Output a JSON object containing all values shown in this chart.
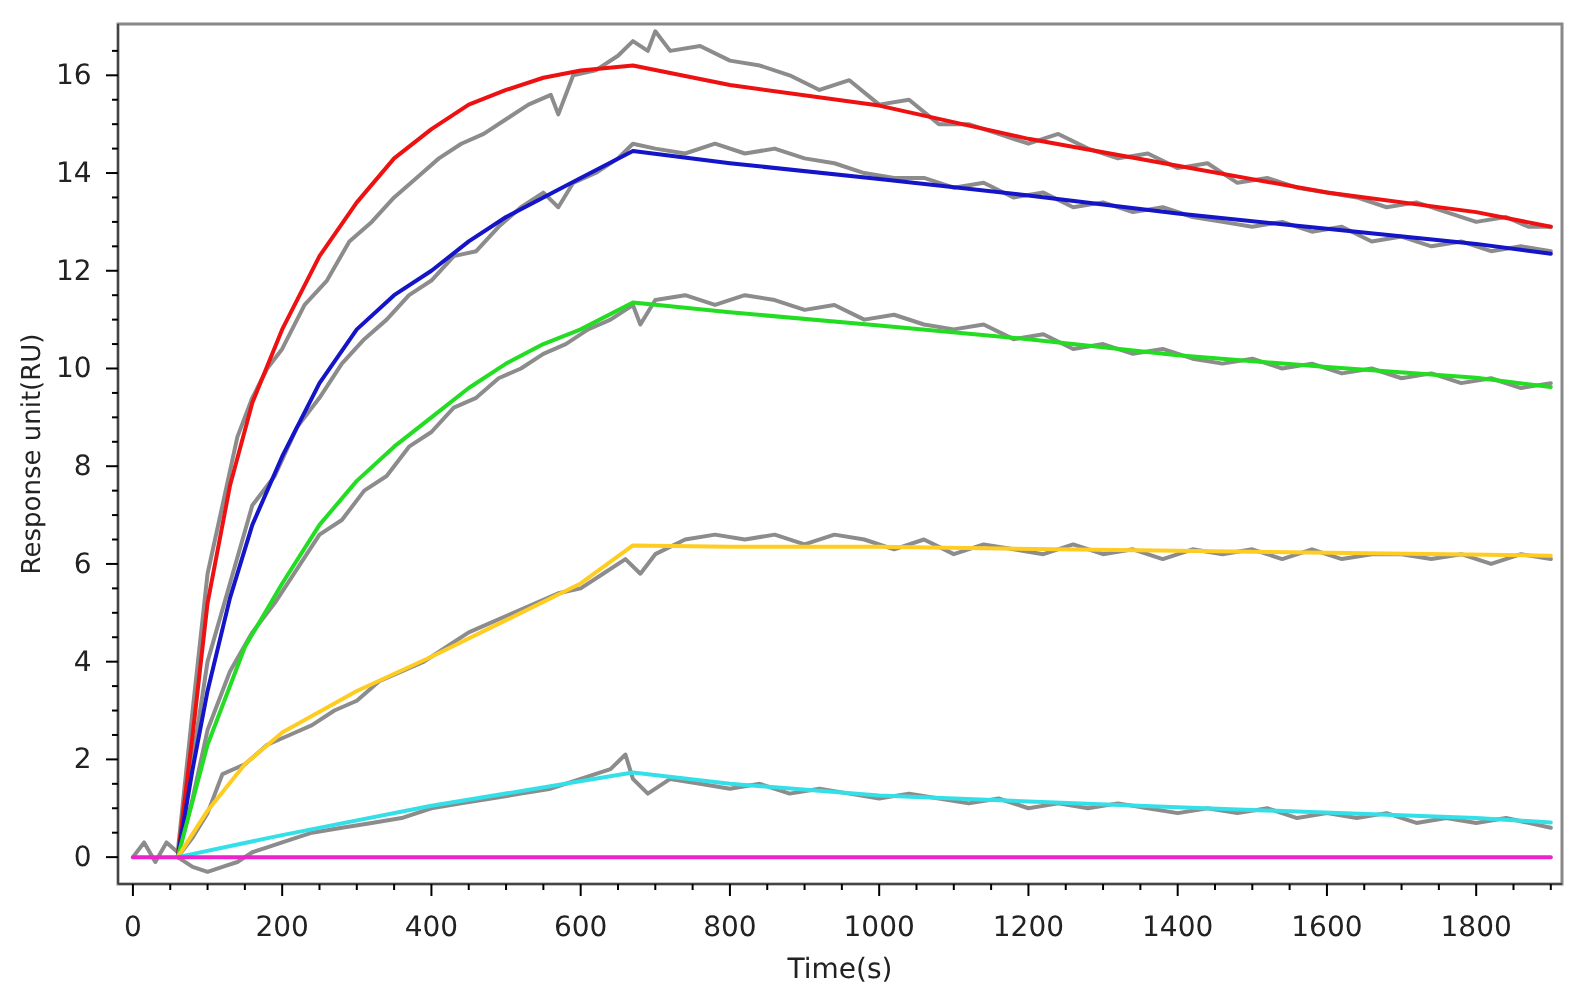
{
  "chart_data": {
    "type": "line",
    "xlabel": "Time(s)",
    "ylabel": "Response unit(RU)",
    "xlim": [
      -20,
      1915
    ],
    "ylim": [
      -0.55,
      17.05
    ],
    "xticks": [
      0,
      {
        "value": 50,
        "label": null
      },
      {
        "value": 100,
        "label": null
      },
      {
        "value": 150,
        "label": null
      },
      200,
      {
        "value": 250,
        "label": null
      },
      {
        "value": 300,
        "label": null
      },
      {
        "value": 350,
        "label": null
      },
      400,
      {
        "value": 450,
        "label": null
      },
      {
        "value": 500,
        "label": null
      },
      {
        "value": 550,
        "label": null
      },
      600,
      {
        "value": 650,
        "label": null
      },
      {
        "value": 700,
        "label": null
      },
      {
        "value": 750,
        "label": null
      },
      800,
      {
        "value": 850,
        "label": null
      },
      {
        "value": 900,
        "label": null
      },
      {
        "value": 950,
        "label": null
      },
      1000,
      {
        "value": 1050,
        "label": null
      },
      {
        "value": 1100,
        "label": null
      },
      {
        "value": 1150,
        "label": null
      },
      1200,
      {
        "value": 1250,
        "label": null
      },
      {
        "value": 1300,
        "label": null
      },
      {
        "value": 1350,
        "label": null
      },
      1400,
      {
        "value": 1450,
        "label": null
      },
      {
        "value": 1500,
        "label": null
      },
      {
        "value": 1550,
        "label": null
      },
      1600,
      {
        "value": 1650,
        "label": null
      },
      {
        "value": 1700,
        "label": null
      },
      {
        "value": 1750,
        "label": null
      },
      1800,
      {
        "value": 1850,
        "label": null
      },
      {
        "value": 1900,
        "label": null
      }
    ],
    "yticks": [
      0,
      {
        "value": 0.5,
        "label": null
      },
      {
        "value": 1,
        "label": null
      },
      {
        "value": 1.5,
        "label": null
      },
      2,
      {
        "value": 2.5,
        "label": null
      },
      {
        "value": 3,
        "label": null
      },
      {
        "value": 3.5,
        "label": null
      },
      4,
      {
        "value": 4.5,
        "label": null
      },
      {
        "value": 5,
        "label": null
      },
      {
        "value": 5.5,
        "label": null
      },
      6,
      {
        "value": 6.5,
        "label": null
      },
      {
        "value": 7,
        "label": null
      },
      {
        "value": 7.5,
        "label": null
      },
      8,
      {
        "value": 8.5,
        "label": null
      },
      {
        "value": 9,
        "label": null
      },
      {
        "value": 9.5,
        "label": null
      },
      10,
      {
        "value": 10.5,
        "label": null
      },
      {
        "value": 11,
        "label": null
      },
      {
        "value": 11.5,
        "label": null
      },
      12,
      {
        "value": 12.5,
        "label": null
      },
      {
        "value": 13,
        "label": null
      },
      {
        "value": 13.5,
        "label": null
      },
      14,
      {
        "value": 14.5,
        "label": null
      },
      {
        "value": 15,
        "label": null
      },
      {
        "value": 15.5,
        "label": null
      },
      16,
      {
        "value": 16.5,
        "label": null
      }
    ],
    "grid": false,
    "marker": "none",
    "line_style": "solid",
    "series": [
      {
        "color": "#8c8c8c",
        "x": [
          0,
          15,
          30,
          45,
          60,
          80,
          100,
          120,
          140,
          160,
          180,
          200,
          230,
          260,
          290,
          320,
          350,
          380,
          410,
          440,
          470,
          500,
          530,
          560,
          570,
          590,
          620,
          650,
          670,
          690,
          700,
          720,
          760,
          800,
          840,
          880,
          920,
          960,
          1000,
          1040,
          1080,
          1120,
          1160,
          1200,
          1240,
          1280,
          1320,
          1360,
          1400,
          1440,
          1480,
          1520,
          1560,
          1600,
          1640,
          1680,
          1720,
          1760,
          1800,
          1840,
          1870,
          1900
        ],
        "values": [
          0,
          0.3,
          -0.1,
          0.3,
          0.1,
          3.0,
          5.8,
          7.2,
          8.6,
          9.4,
          10.0,
          10.4,
          11.3,
          11.8,
          12.6,
          13.0,
          13.5,
          13.9,
          14.3,
          14.6,
          14.8,
          15.1,
          15.4,
          15.6,
          15.2,
          16.0,
          16.1,
          16.4,
          16.7,
          16.5,
          16.9,
          16.5,
          16.6,
          16.3,
          16.2,
          16.0,
          15.7,
          15.9,
          15.4,
          15.5,
          15.0,
          15.0,
          14.8,
          14.6,
          14.8,
          14.5,
          14.3,
          14.4,
          14.1,
          14.2,
          13.8,
          13.9,
          13.7,
          13.6,
          13.5,
          13.3,
          13.4,
          13.2,
          13.0,
          13.1,
          12.9,
          12.9
        ]
      },
      {
        "color": "#8c8c8c",
        "x": [
          60,
          80,
          100,
          130,
          160,
          190,
          220,
          250,
          280,
          310,
          340,
          370,
          400,
          430,
          460,
          490,
          520,
          550,
          570,
          590,
          620,
          650,
          670,
          700,
          740,
          780,
          820,
          860,
          900,
          940,
          980,
          1020,
          1060,
          1100,
          1140,
          1180,
          1220,
          1260,
          1300,
          1340,
          1380,
          1420,
          1460,
          1500,
          1540,
          1580,
          1620,
          1660,
          1700,
          1740,
          1780,
          1820,
          1860,
          1900
        ],
        "values": [
          0,
          2.0,
          4.0,
          5.6,
          7.2,
          7.8,
          8.8,
          9.4,
          10.1,
          10.6,
          11.0,
          11.5,
          11.8,
          12.3,
          12.4,
          12.9,
          13.3,
          13.6,
          13.3,
          13.8,
          14.0,
          14.3,
          14.6,
          14.5,
          14.4,
          14.6,
          14.4,
          14.5,
          14.3,
          14.2,
          14.0,
          13.9,
          13.9,
          13.7,
          13.8,
          13.5,
          13.6,
          13.3,
          13.4,
          13.2,
          13.3,
          13.1,
          13.0,
          12.9,
          13.0,
          12.8,
          12.9,
          12.6,
          12.7,
          12.5,
          12.6,
          12.4,
          12.5,
          12.4
        ]
      },
      {
        "color": "#8c8c8c",
        "x": [
          60,
          80,
          100,
          130,
          160,
          190,
          220,
          250,
          280,
          310,
          340,
          370,
          400,
          430,
          460,
          490,
          520,
          550,
          580,
          610,
          640,
          670,
          680,
          700,
          740,
          780,
          820,
          860,
          900,
          940,
          980,
          1020,
          1060,
          1100,
          1140,
          1180,
          1220,
          1260,
          1300,
          1340,
          1380,
          1420,
          1460,
          1500,
          1540,
          1580,
          1620,
          1660,
          1700,
          1740,
          1780,
          1820,
          1860,
          1900
        ],
        "values": [
          0,
          1.2,
          2.6,
          3.8,
          4.6,
          5.2,
          5.9,
          6.6,
          6.9,
          7.5,
          7.8,
          8.4,
          8.7,
          9.2,
          9.4,
          9.8,
          10.0,
          10.3,
          10.5,
          10.8,
          11.0,
          11.3,
          10.9,
          11.4,
          11.5,
          11.3,
          11.5,
          11.4,
          11.2,
          11.3,
          11.0,
          11.1,
          10.9,
          10.8,
          10.9,
          10.6,
          10.7,
          10.4,
          10.5,
          10.3,
          10.4,
          10.2,
          10.1,
          10.2,
          10.0,
          10.1,
          9.9,
          10.0,
          9.8,
          9.9,
          9.7,
          9.8,
          9.6,
          9.7
        ]
      },
      {
        "color": "#8c8c8c",
        "x": [
          60,
          80,
          100,
          120,
          150,
          180,
          210,
          240,
          270,
          300,
          330,
          360,
          390,
          420,
          450,
          480,
          510,
          540,
          570,
          600,
          630,
          660,
          680,
          700,
          740,
          780,
          820,
          860,
          900,
          940,
          980,
          1020,
          1060,
          1100,
          1140,
          1180,
          1220,
          1260,
          1300,
          1340,
          1380,
          1420,
          1460,
          1500,
          1540,
          1580,
          1620,
          1660,
          1700,
          1740,
          1780,
          1820,
          1860,
          1900
        ],
        "values": [
          0,
          0.4,
          0.9,
          1.7,
          1.9,
          2.3,
          2.5,
          2.7,
          3.0,
          3.2,
          3.6,
          3.8,
          4.0,
          4.3,
          4.6,
          4.8,
          5.0,
          5.2,
          5.4,
          5.5,
          5.8,
          6.1,
          5.8,
          6.2,
          6.5,
          6.6,
          6.5,
          6.6,
          6.4,
          6.6,
          6.5,
          6.3,
          6.5,
          6.2,
          6.4,
          6.3,
          6.2,
          6.4,
          6.2,
          6.3,
          6.1,
          6.3,
          6.2,
          6.3,
          6.1,
          6.3,
          6.1,
          6.2,
          6.2,
          6.1,
          6.2,
          6.0,
          6.2,
          6.1
        ]
      },
      {
        "color": "#8c8c8c",
        "x": [
          60,
          80,
          100,
          120,
          140,
          160,
          180,
          200,
          240,
          280,
          320,
          360,
          400,
          440,
          480,
          520,
          560,
          600,
          640,
          660,
          670,
          690,
          720,
          760,
          800,
          840,
          880,
          920,
          960,
          1000,
          1040,
          1080,
          1120,
          1160,
          1200,
          1240,
          1280,
          1320,
          1360,
          1400,
          1440,
          1480,
          1520,
          1560,
          1600,
          1640,
          1680,
          1720,
          1760,
          1800,
          1840,
          1870,
          1900
        ],
        "values": [
          0,
          -0.2,
          -0.3,
          -0.2,
          -0.1,
          0.1,
          0.2,
          0.3,
          0.5,
          0.6,
          0.7,
          0.8,
          1.0,
          1.1,
          1.2,
          1.3,
          1.4,
          1.6,
          1.8,
          2.1,
          1.6,
          1.3,
          1.6,
          1.5,
          1.4,
          1.5,
          1.3,
          1.4,
          1.3,
          1.2,
          1.3,
          1.2,
          1.1,
          1.2,
          1.0,
          1.1,
          1.0,
          1.1,
          1.0,
          0.9,
          1.0,
          0.9,
          1.0,
          0.8,
          0.9,
          0.8,
          0.9,
          0.7,
          0.8,
          0.7,
          0.8,
          0.7,
          0.6
        ]
      },
      {
        "color": "#ee1111",
        "x": [
          60,
          80,
          100,
          130,
          160,
          200,
          250,
          300,
          350,
          400,
          450,
          500,
          550,
          600,
          670,
          800,
          1000,
          1200,
          1400,
          1600,
          1800,
          1900
        ],
        "values": [
          0,
          2.5,
          5.2,
          7.6,
          9.3,
          10.8,
          12.3,
          13.4,
          14.3,
          14.9,
          15.4,
          15.7,
          15.95,
          16.1,
          16.2,
          15.8,
          15.38,
          14.7,
          14.15,
          13.6,
          13.2,
          12.9
        ]
      },
      {
        "color": "#1414c8",
        "x": [
          60,
          80,
          100,
          130,
          160,
          200,
          250,
          300,
          350,
          400,
          450,
          500,
          550,
          600,
          670,
          800,
          1000,
          1200,
          1400,
          1600,
          1800,
          1900
        ],
        "values": [
          0,
          1.8,
          3.4,
          5.3,
          6.8,
          8.2,
          9.7,
          10.8,
          11.5,
          12.0,
          12.6,
          13.1,
          13.5,
          13.9,
          14.45,
          14.2,
          13.88,
          13.54,
          13.17,
          12.86,
          12.55,
          12.35
        ]
      },
      {
        "color": "#22dd22",
        "x": [
          60,
          100,
          150,
          200,
          250,
          300,
          350,
          400,
          450,
          500,
          550,
          600,
          670,
          800,
          1000,
          1200,
          1400,
          1600,
          1800,
          1900
        ],
        "values": [
          0,
          2.3,
          4.3,
          5.6,
          6.8,
          7.7,
          8.4,
          9.0,
          9.6,
          10.1,
          10.5,
          10.8,
          11.35,
          11.15,
          10.88,
          10.6,
          10.27,
          10.03,
          9.81,
          9.62
        ]
      },
      {
        "color": "#ffcc22",
        "x": [
          60,
          100,
          150,
          200,
          300,
          400,
          500,
          600,
          670,
          800,
          1000,
          1400,
          1900
        ],
        "values": [
          0,
          0.95,
          1.9,
          2.55,
          3.4,
          4.1,
          4.85,
          5.6,
          6.38,
          6.35,
          6.35,
          6.27,
          6.17
        ]
      },
      {
        "color": "#33e0e8",
        "x": [
          60,
          200,
          400,
          670,
          800,
          1000,
          1400,
          1800,
          1900
        ],
        "values": [
          0,
          0.45,
          1.05,
          1.73,
          1.5,
          1.26,
          1.02,
          0.8,
          0.71
        ]
      },
      {
        "color": "#ee22cc",
        "x": [
          0,
          1900
        ],
        "values": [
          0,
          0
        ]
      }
    ]
  }
}
